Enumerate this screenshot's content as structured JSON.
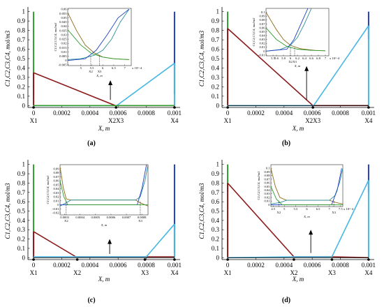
{
  "chart_data": [
    {
      "panel_label": "(a)",
      "type": "line",
      "xlabel": "X, m",
      "ylabel": "C1,C2,C3,C4, mol/m3",
      "xlim": [
        -4e-05,
        0.00104
      ],
      "ylim": [
        -0.02,
        1.02
      ],
      "x_ticks": [
        "0",
        "0.0002",
        "0.0004",
        "0.0006",
        "0.0008",
        "0.001"
      ],
      "y_ticks": [
        "0",
        "0.1",
        "0.2",
        "0.3",
        "0.4",
        "0.5",
        "0.6",
        "0.7",
        "0.8",
        "0.9",
        "1"
      ],
      "markers": [
        {
          "label": "X1",
          "x": 0.0
        },
        {
          "label": "X2",
          "x": 0.000585
        },
        {
          "label": "X3",
          "x": 0.000585
        },
        {
          "label": "X4",
          "x": 0.001
        }
      ],
      "marker_labels": [
        "X1",
        "X2X3",
        "X4"
      ],
      "series": [
        {
          "color": "#8b1a1a",
          "x": [
            0,
            0.00058,
            0.001
          ],
          "y": [
            0.35,
            0.0,
            0.0
          ]
        },
        {
          "color": "#47b7e3",
          "x": [
            0,
            0.00059,
            0.001
          ],
          "y": [
            0.0,
            0.0,
            0.45
          ]
        },
        {
          "color": "#000000",
          "x": [
            0,
            0.001
          ],
          "y": [
            0.0,
            0.0
          ]
        },
        {
          "color": "#2f9e2f",
          "x": [
            0,
            0.001
          ],
          "y": [
            0.0,
            0.0
          ]
        }
      ],
      "boundary_bars": [
        {
          "color": "#2f9e2f",
          "x": 0.0,
          "y": [
            0.12,
            1.0
          ]
        },
        {
          "color": "#1f3fbf",
          "x": 0.001,
          "y": [
            0.12,
            1.0
          ]
        },
        {
          "color": "#8b1a1a",
          "x": 0.0,
          "y": [
            0.0,
            0.35
          ]
        },
        {
          "color": "#47b7e3",
          "x": 0.001,
          "y": [
            0.0,
            0.45
          ]
        }
      ],
      "arrow": {
        "x": 0.000545,
        "y_from": 0.06,
        "y_to": 0.27
      },
      "inset": {
        "ylabel": "C1,C2,C3,C4, mol/m3",
        "xlabel": "X, m",
        "xlim": [
          4.4,
          7.3
        ],
        "ylim": [
          -0.006,
          0.061
        ],
        "x_ticks": [
          "5",
          "5.5",
          "6",
          "6.5",
          "7"
        ],
        "x_tick_values": [
          5,
          5.5,
          6,
          6.5,
          7
        ],
        "x_exponent": "x 10^-4",
        "y_ticks": [
          "-0.005",
          "0",
          "0.005",
          "0.01",
          "0.015",
          "0.02",
          "0.025",
          "0.03",
          "0.035",
          "0.04",
          "0.045",
          "0.05",
          "0.055",
          "0.06"
        ],
        "marker_labels": [
          "X2",
          "X3"
        ],
        "marker_x": [
          5.45,
          5.85
        ],
        "series": [
          {
            "color": "#8b6a1a",
            "x": [
              4.4,
              4.8,
              5.2,
              5.6,
              6.0,
              6.5,
              7.2
            ],
            "y": [
              0.056,
              0.035,
              0.018,
              0.009,
              0.004,
              0.002,
              0.001
            ]
          },
          {
            "color": "#2b8f9a",
            "x": [
              4.4,
              5.0,
              5.6,
              6.0,
              6.4,
              6.8,
              7.2
            ],
            "y": [
              0.001,
              0.002,
              0.006,
              0.012,
              0.025,
              0.045,
              0.06
            ]
          },
          {
            "color": "#1f3fbf",
            "x": [
              4.4,
              5.2,
              5.7,
              6.2,
              6.7,
              7.2
            ],
            "y": [
              0.0,
              0.002,
              0.012,
              0.03,
              0.05,
              0.06
            ]
          },
          {
            "color": "#2f9e2f",
            "x": [
              4.4,
              5.0,
              5.5,
              6.0,
              6.5,
              7.2
            ],
            "y": [
              0.036,
              0.018,
              0.008,
              0.004,
              0.002,
              0.001
            ]
          }
        ]
      }
    },
    {
      "panel_label": "(b)",
      "type": "line",
      "xlabel": "X, m",
      "ylabel": "C1,C2,C3,C4, mol/m3",
      "xlim": [
        -4e-05,
        0.00104
      ],
      "ylim": [
        -0.02,
        1.02
      ],
      "x_ticks": [
        "0",
        "0.0002",
        "0.0004",
        "0.0006",
        "0.0008",
        "0.001"
      ],
      "y_ticks": [
        "0",
        "0.1",
        "0.2",
        "0.3",
        "0.4",
        "0.5",
        "0.6",
        "0.7",
        "0.8",
        "0.9",
        "1"
      ],
      "marker_labels": [
        "X1",
        "X2X3",
        "X4"
      ],
      "markers_x": [
        0.0,
        0.000605,
        0.001
      ],
      "series": [
        {
          "color": "#8b1a1a",
          "x": [
            0,
            0.000605,
            0.001
          ],
          "y": [
            0.82,
            0.0,
            0.0
          ]
        },
        {
          "color": "#47b7e3",
          "x": [
            0,
            0.00061,
            0.001
          ],
          "y": [
            0.0,
            0.0,
            0.85
          ]
        },
        {
          "color": "#000000",
          "x": [
            0,
            0.001
          ],
          "y": [
            0.0,
            0.0
          ]
        }
      ],
      "boundary_bars": [
        {
          "color": "#2f9e2f",
          "x": 0.0,
          "y": [
            0.7,
            1.0
          ]
        },
        {
          "color": "#1f3fbf",
          "x": 0.001,
          "y": [
            0.7,
            1.0
          ]
        },
        {
          "color": "#8b1a1a",
          "x": 0.0,
          "y": [
            0.0,
            0.82
          ]
        },
        {
          "color": "#47b7e3",
          "x": 0.001,
          "y": [
            0.0,
            0.85
          ]
        }
      ],
      "arrow": {
        "x": 0.00056,
        "y_from": 0.06,
        "y_to": 0.42
      },
      "inset": {
        "ylabel": "C1,C2,C3,C4, mol/m3",
        "xlabel": "X, m",
        "xlim": [
          5.3,
          7.1
        ],
        "ylim": [
          -0.012,
          0.11
        ],
        "x_ticks": [
          "5.5",
          "5.6",
          "5.8",
          "6",
          "6.2",
          "6.4",
          "6.6",
          "6.8",
          "7"
        ],
        "x_tick_values": [
          5.5,
          5.6,
          5.8,
          6,
          6.2,
          6.4,
          6.6,
          6.8,
          7
        ],
        "x_exponent": "x 10^-4",
        "y_ticks": [
          "-0.01",
          "0",
          "0.01",
          "0.02",
          "0.03",
          "0.04",
          "0.05",
          "0.06",
          "0.07",
          "0.08",
          "0.09",
          "0.1"
        ],
        "marker_labels": [
          "X2",
          "X3"
        ],
        "marker_x": [
          6.0,
          6.12
        ],
        "series": [
          {
            "color": "#8b6a1a",
            "x": [
              5.3,
              5.6,
              5.8,
              6.0,
              6.3,
              6.7,
              7.0
            ],
            "y": [
              0.1,
              0.055,
              0.03,
              0.015,
              0.006,
              0.002,
              0.001
            ]
          },
          {
            "color": "#2b8f9a",
            "x": [
              5.3,
              5.7,
              6.0,
              6.2,
              6.4,
              6.6
            ],
            "y": [
              0.0,
              0.004,
              0.015,
              0.035,
              0.07,
              0.11
            ]
          },
          {
            "color": "#1f3fbf",
            "x": [
              5.3,
              5.9,
              6.1,
              6.3,
              6.5
            ],
            "y": [
              0.0,
              0.005,
              0.03,
              0.07,
              0.11
            ]
          },
          {
            "color": "#2f9e2f",
            "x": [
              5.3,
              5.6,
              5.9,
              6.2,
              6.6,
              7.0
            ],
            "y": [
              0.06,
              0.03,
              0.012,
              0.005,
              0.002,
              0.001
            ]
          }
        ]
      }
    },
    {
      "panel_label": "(c)",
      "type": "line",
      "xlabel": "X, m",
      "ylabel": "C1,C2,C3,C4, mol/m3",
      "xlim": [
        -4e-05,
        0.00104
      ],
      "ylim": [
        -0.02,
        1.02
      ],
      "x_ticks": [
        "0",
        "0.0002",
        "0.0004",
        "0.0006",
        "0.0008",
        "0.001"
      ],
      "y_ticks": [
        "0",
        "0.1",
        "0.2",
        "0.3",
        "0.4",
        "0.5",
        "0.6",
        "0.7",
        "0.8",
        "0.9",
        "1"
      ],
      "marker_labels": [
        "X1",
        "X2",
        "X3",
        "X4"
      ],
      "markers_x": [
        0.0,
        0.00031,
        0.00079,
        0.001
      ],
      "series": [
        {
          "color": "#8b1a1a",
          "x": [
            0,
            0.0003,
            0.0008,
            0.001
          ],
          "y": [
            0.28,
            0.01,
            0.01,
            0.01
          ]
        },
        {
          "color": "#47b7e3",
          "x": [
            0,
            0.0003,
            0.0008,
            0.001
          ],
          "y": [
            0.01,
            0.01,
            0.01,
            0.36
          ]
        },
        {
          "color": "#000000",
          "x": [
            0,
            0.001
          ],
          "y": [
            0.0,
            0.0
          ]
        }
      ],
      "boundary_bars": [
        {
          "color": "#2f9e2f",
          "x": 0.0,
          "y": [
            0.05,
            1.0
          ]
        },
        {
          "color": "#1f3fbf",
          "x": 0.001,
          "y": [
            0.05,
            1.0
          ]
        },
        {
          "color": "#8b1a1a",
          "x": 0.0,
          "y": [
            0.0,
            0.28
          ]
        },
        {
          "color": "#47b7e3",
          "x": 0.001,
          "y": [
            0.0,
            0.36
          ]
        }
      ],
      "arrow": {
        "x": 0.00054,
        "y_from": 0.04,
        "y_to": 0.2
      },
      "inset": {
        "ylabel": "C1,C2,C3,C4, mol/m3",
        "xlabel": "X, m",
        "xlim": [
          2.7,
          8.4
        ],
        "ylim": [
          -0.025,
          0.1
        ],
        "x_ticks": [
          "0.0003",
          "0.0004",
          "0.0005",
          "0.0006",
          "0.0007",
          "0.0008"
        ],
        "x_tick_values": [
          3,
          4,
          5,
          6,
          7,
          8
        ],
        "y_ticks": [
          "-0.02",
          "-0.01",
          "0",
          "0.01",
          "0.02",
          "0.03",
          "0.04",
          "0.05",
          "0.06",
          "0.07",
          "0.08",
          "0.09"
        ],
        "marker_labels": [
          "X2",
          "X3"
        ],
        "marker_x": [
          3.1,
          7.9
        ],
        "series": [
          {
            "color": "#8b6a1a",
            "x": [
              2.7,
              2.9,
              3.1,
              3.4,
              7.6,
              7.9,
              8.4
            ],
            "y": [
              0.095,
              0.045,
              0.015,
              0.012,
              0.012,
              0.005,
              -0.003
            ]
          },
          {
            "color": "#2b8f9a",
            "x": [
              2.7,
              3.1,
              3.4,
              7.6,
              7.9,
              8.2,
              8.4
            ],
            "y": [
              -0.003,
              0.005,
              0.012,
              0.012,
              0.02,
              0.06,
              0.1
            ]
          },
          {
            "color": "#1f3fbf",
            "x": [
              2.7,
              7.7,
              8.0,
              8.3
            ],
            "y": [
              0.0,
              0.0,
              0.04,
              0.1
            ]
          },
          {
            "color": "#2f9e2f",
            "x": [
              2.7,
              2.95,
              3.2,
              8.4
            ],
            "y": [
              0.06,
              0.02,
              0.0,
              0.0
            ]
          }
        ]
      }
    },
    {
      "panel_label": "(d)",
      "type": "line",
      "xlabel": "X, m",
      "ylabel": "C1,C2,C3,C4, mol/m3",
      "xlim": [
        -4e-05,
        0.00104
      ],
      "ylim": [
        -0.02,
        1.02
      ],
      "x_ticks": [
        "0",
        "0.0002",
        "0.0004",
        "0.0006",
        "0.0008",
        "0.001"
      ],
      "y_ticks": [
        "0",
        "0.1",
        "0.2",
        "0.3",
        "0.4",
        "0.5",
        "0.6",
        "0.7",
        "0.8",
        "0.9",
        "1"
      ],
      "marker_labels": [
        "X1",
        "X2",
        "X3",
        "X4"
      ],
      "markers_x": [
        0.0,
        0.00047,
        0.00074,
        0.001
      ],
      "series": [
        {
          "color": "#8b1a1a",
          "x": [
            0,
            0.00047,
            0.00074,
            0.001
          ],
          "y": [
            0.8,
            0.01,
            0.01,
            0.0
          ]
        },
        {
          "color": "#47b7e3",
          "x": [
            0,
            0.00047,
            0.00074,
            0.001
          ],
          "y": [
            0.0,
            0.01,
            0.01,
            0.83
          ]
        },
        {
          "color": "#000000",
          "x": [
            0,
            0.001
          ],
          "y": [
            0.0,
            0.0
          ]
        }
      ],
      "boundary_bars": [
        {
          "color": "#2f9e2f",
          "x": 0.0,
          "y": [
            0.7,
            1.0
          ]
        },
        {
          "color": "#1f3fbf",
          "x": 0.001,
          "y": [
            0.7,
            1.0
          ]
        },
        {
          "color": "#8b1a1a",
          "x": 0.0,
          "y": [
            0.0,
            0.8
          ]
        },
        {
          "color": "#47b7e3",
          "x": 0.001,
          "y": [
            0.0,
            0.83
          ]
        }
      ],
      "arrow": {
        "x": 0.00059,
        "y_from": 0.05,
        "y_to": 0.3
      },
      "inset": {
        "ylabel": "C1,C2,C3,C4, mol/m3",
        "xlabel": "X, m",
        "xlim": [
          4.4,
          7.6
        ],
        "ylim": [
          -0.005,
          0.11
        ],
        "x_ticks": [
          "4.5",
          "5",
          "5.5",
          "6",
          "6.5",
          "7",
          "7.5"
        ],
        "x_tick_values": [
          4.5,
          5,
          5.5,
          6,
          6.5,
          7,
          7.5
        ],
        "x_exponent": "x 10^-4",
        "y_ticks": [
          "0",
          "0.01",
          "0.02",
          "0.03",
          "0.04",
          "0.05",
          "0.06",
          "0.07",
          "0.08",
          "0.09",
          "0.1"
        ],
        "marker_labels": [
          "X2",
          "X3"
        ],
        "marker_x": [
          4.75,
          7.2
        ],
        "series": [
          {
            "color": "#8b6a1a",
            "x": [
              4.4,
              4.6,
              4.8,
              5.1,
              7.0,
              7.3,
              7.6
            ],
            "y": [
              0.1,
              0.05,
              0.02,
              0.012,
              0.012,
              0.006,
              0.002
            ]
          },
          {
            "color": "#2b8f9a",
            "x": [
              4.4,
              4.8,
              5.1,
              7.0,
              7.25,
              7.45,
              7.6
            ],
            "y": [
              0.002,
              0.006,
              0.012,
              0.012,
              0.025,
              0.06,
              0.1
            ]
          },
          {
            "color": "#1f3fbf",
            "x": [
              4.4,
              7.1,
              7.35,
              7.55
            ],
            "y": [
              0.0,
              0.0,
              0.04,
              0.1
            ]
          },
          {
            "color": "#2f9e2f",
            "x": [
              4.4,
              4.65,
              4.9,
              7.6
            ],
            "y": [
              0.05,
              0.015,
              0.0,
              0.0
            ]
          }
        ]
      }
    }
  ]
}
